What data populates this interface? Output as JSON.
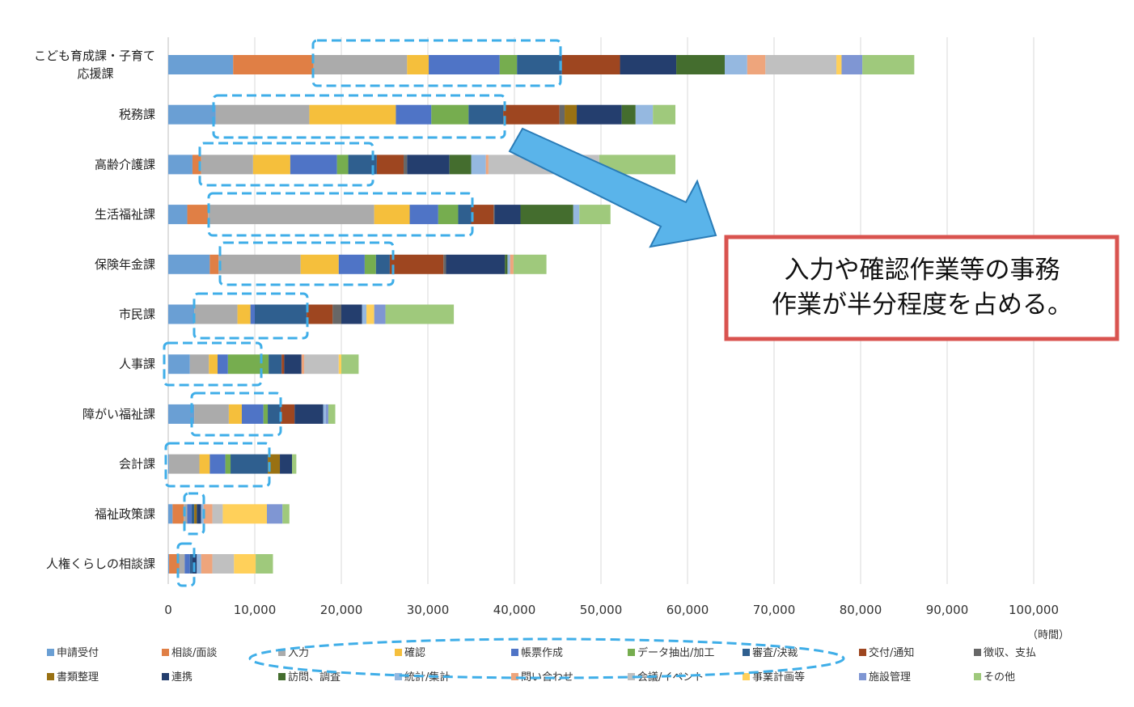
{
  "chart_data": {
    "type": "bar",
    "orientation": "horizontal",
    "stacked": true,
    "categories": [
      "こども育成課・子育て応援課",
      "税務課",
      "高齢介護課",
      "生活福祉課",
      "保険年金課",
      "市民課",
      "人事課",
      "障がい福祉課",
      "会計課",
      "福祉政策課",
      "人権くらしの相談課"
    ],
    "category_lines": [
      [
        "こども育成課・子育て",
        "応援課"
      ],
      [
        "税務課"
      ],
      [
        "高齢介護課"
      ],
      [
        "生活福祉課"
      ],
      [
        "保険年金課"
      ],
      [
        "市民課"
      ],
      [
        "人事課"
      ],
      [
        "障がい福祉課"
      ],
      [
        "会計課"
      ],
      [
        "福祉政策課"
      ],
      [
        "人権くらしの相談課"
      ]
    ],
    "xlim": [
      0,
      100000
    ],
    "x_ticks": [
      0,
      10000,
      20000,
      30000,
      40000,
      50000,
      60000,
      70000,
      80000,
      90000,
      100000
    ],
    "x_tick_labels": [
      "0",
      "10,000",
      "20,000",
      "30,000",
      "40,000",
      "50,000",
      "60,000",
      "70,000",
      "80,000",
      "90,000",
      "100,000"
    ],
    "unit_label": "（時間）",
    "grid": "vertical",
    "legend_position": "bottom",
    "series": [
      {
        "name": "申請受付",
        "color": "#6a9fd4",
        "values": [
          7500,
          5500,
          2800,
          2200,
          4800,
          3000,
          2500,
          3000,
          100,
          500,
          100
        ]
      },
      {
        "name": "相談/面談",
        "color": "#e07f45",
        "values": [
          9300,
          0,
          1000,
          2400,
          1000,
          0,
          0,
          0,
          0,
          1300,
          1200
        ]
      },
      {
        "name": "入力",
        "color": "#ababab",
        "values": [
          10800,
          10800,
          6000,
          19200,
          9500,
          5000,
          2200,
          4000,
          3500,
          400,
          600
        ]
      },
      {
        "name": "確認",
        "color": "#f5bf3c",
        "values": [
          2500,
          10000,
          4300,
          4100,
          4400,
          1500,
          1000,
          1500,
          1200,
          0,
          0
        ]
      },
      {
        "name": "帳票作成",
        "color": "#4f74c6",
        "values": [
          8200,
          4100,
          5400,
          3300,
          3000,
          500,
          1200,
          2500,
          1800,
          500,
          600
        ]
      },
      {
        "name": "データ抽出/加工",
        "color": "#76ad4f",
        "values": [
          2000,
          4300,
          1300,
          2300,
          1300,
          0,
          4700,
          500,
          600,
          0,
          0
        ]
      },
      {
        "name": "審査/決裁",
        "color": "#2f5f8f",
        "values": [
          5200,
          4000,
          3300,
          1500,
          1600,
          6000,
          1500,
          1500,
          4300,
          300,
          300
        ]
      },
      {
        "name": "交付/通知",
        "color": "#9e4620",
        "values": [
          6700,
          6500,
          3100,
          2600,
          6200,
          3000,
          300,
          1600,
          0,
          0,
          0
        ]
      },
      {
        "name": "徴収、支払",
        "color": "#676767",
        "values": [
          0,
          600,
          400,
          100,
          300,
          1000,
          0,
          0,
          0,
          0,
          0
        ]
      },
      {
        "name": "書類整理",
        "color": "#997113",
        "values": [
          0,
          1400,
          0,
          0,
          0,
          0,
          0,
          0,
          1400,
          300,
          0
        ]
      },
      {
        "name": "連携",
        "color": "#243e6e",
        "values": [
          6500,
          5200,
          4900,
          3000,
          6800,
          2400,
          2000,
          3300,
          1400,
          500,
          500
        ]
      },
      {
        "name": "訪問、調査",
        "color": "#446d2e",
        "values": [
          5600,
          1600,
          2500,
          6100,
          300,
          0,
          0,
          0,
          0,
          0,
          0
        ]
      },
      {
        "name": "統計/集計",
        "color": "#95b8e0",
        "values": [
          2600,
          2000,
          1700,
          700,
          300,
          500,
          0,
          300,
          0,
          300,
          500
        ]
      },
      {
        "name": "問い合わせ",
        "color": "#eea57c",
        "values": [
          2100,
          0,
          300,
          0,
          400,
          0,
          300,
          0,
          0,
          1000,
          1300
        ]
      },
      {
        "name": "会議/イベント",
        "color": "#c0c0c0",
        "values": [
          8200,
          0,
          12800,
          0,
          0,
          0,
          4000,
          0,
          0,
          1200,
          2500
        ]
      },
      {
        "name": "事業計画等",
        "color": "#ffd05a",
        "values": [
          600,
          0,
          0,
          0,
          0,
          900,
          300,
          0,
          0,
          5100,
          2500
        ]
      },
      {
        "name": "施設管理",
        "color": "#7f96d3",
        "values": [
          2400,
          0,
          0,
          0,
          0,
          1300,
          0,
          300,
          0,
          1800,
          0
        ]
      },
      {
        "name": "その他",
        "color": "#9fc97c",
        "values": [
          6000,
          2600,
          8800,
          3600,
          3800,
          7900,
          2000,
          800,
          500,
          800,
          2000
        ]
      }
    ]
  },
  "callout": {
    "line1": "入力や確認作業等の事務",
    "line2": "作業が半分程度を占める。",
    "border_color": "#d9534f",
    "arrow_color": "#5ab4ea"
  },
  "highlight_color": "#3faee8"
}
